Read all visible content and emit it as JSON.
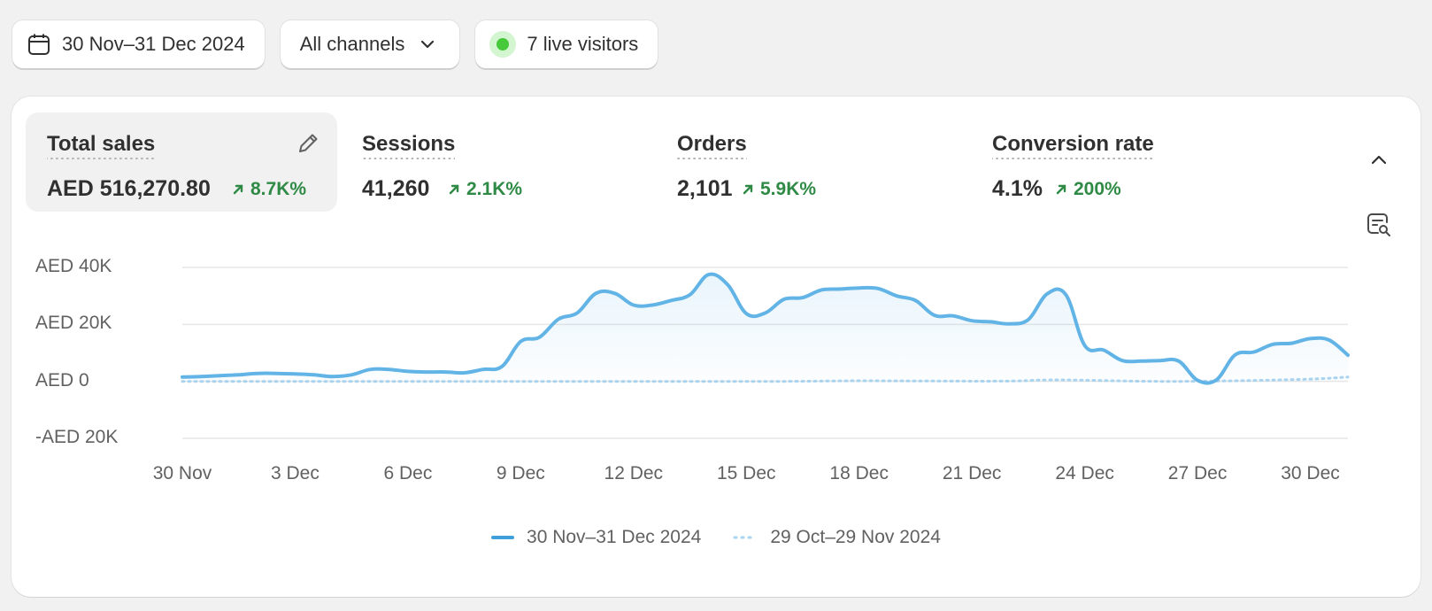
{
  "toolbar": {
    "date_range": "30 Nov–31 Dec 2024",
    "channel": "All channels",
    "live_visitors": "7 live visitors"
  },
  "metrics": [
    {
      "label": "Total sales",
      "value": "AED 516,270.80",
      "delta": "8.7K%"
    },
    {
      "label": "Sessions",
      "value": "41,260",
      "delta": "2.1K%"
    },
    {
      "label": "Orders",
      "value": "2,101",
      "delta": "5.9K%"
    },
    {
      "label": "Conversion rate",
      "value": "4.1%",
      "delta": "200%"
    }
  ],
  "colors": {
    "current": "#62b4e6",
    "previous": "#a9d3ef",
    "positive": "#2e8a45"
  },
  "icons": [
    "calendar-icon",
    "chevron-down-icon",
    "live-dot-icon",
    "pencil-icon",
    "chevron-up-icon",
    "chat-search-icon",
    "arrow-up-right-icon"
  ],
  "chart_data": {
    "type": "line",
    "ylim": [
      -20000,
      40000
    ],
    "y_ticks": [
      {
        "value": 40000,
        "label": "AED 40K"
      },
      {
        "value": 20000,
        "label": "AED 20K"
      },
      {
        "value": 0,
        "label": "AED 0"
      },
      {
        "value": -20000,
        "label": "-AED 20K"
      }
    ],
    "x_ticks": [
      {
        "day": 0,
        "label": "30 Nov"
      },
      {
        "day": 3,
        "label": "3 Dec"
      },
      {
        "day": 6,
        "label": "6 Dec"
      },
      {
        "day": 9,
        "label": "9 Dec"
      },
      {
        "day": 12,
        "label": "12 Dec"
      },
      {
        "day": 15,
        "label": "15 Dec"
      },
      {
        "day": 18,
        "label": "18 Dec"
      },
      {
        "day": 21,
        "label": "21 Dec"
      },
      {
        "day": 24,
        "label": "24 Dec"
      },
      {
        "day": 27,
        "label": "27 Dec"
      },
      {
        "day": 30,
        "label": "30 Dec"
      }
    ],
    "grid": true,
    "series": [
      {
        "name": "30 Nov–31 Dec 2024",
        "style": "solid",
        "x": [
          0,
          0.5,
          1,
          1.5,
          2,
          2.5,
          3,
          3.5,
          4,
          4.5,
          5,
          5.5,
          6,
          6.5,
          7,
          7.5,
          8,
          8.5,
          9,
          9.5,
          10,
          10.5,
          11,
          11.5,
          12,
          12.5,
          13,
          13.5,
          14,
          14.5,
          15,
          15.5,
          16,
          16.5,
          17,
          17.5,
          18,
          18.5,
          19,
          19.5,
          20,
          20.5,
          21,
          21.5,
          22,
          22.5,
          23,
          23.5,
          24,
          24.5,
          25,
          25.5,
          26,
          26.5,
          27,
          27.5,
          28,
          28.5,
          29,
          29.5,
          30,
          30.5,
          31
        ],
        "values": [
          1500,
          1700,
          2000,
          2300,
          2800,
          2800,
          2600,
          2300,
          1700,
          2300,
          4200,
          4200,
          3500,
          3300,
          3300,
          3000,
          4200,
          5200,
          14000,
          15500,
          21800,
          24000,
          30900,
          30900,
          26800,
          26800,
          28400,
          30400,
          37500,
          34000,
          23800,
          24000,
          28800,
          29400,
          32100,
          32400,
          32800,
          32600,
          30000,
          28400,
          23200,
          23000,
          21300,
          20900,
          20200,
          21700,
          30700,
          30400,
          12600,
          11000,
          7300,
          7100,
          7300,
          7100,
          400,
          500,
          9300,
          10300,
          13000,
          13400,
          15000,
          14500,
          9200
        ]
      },
      {
        "name": "29 Oct–29 Nov 2024",
        "style": "dotted",
        "x": [
          0,
          2,
          4,
          6,
          8,
          10,
          12,
          14,
          16,
          18,
          20,
          22,
          23,
          24,
          26,
          28,
          30,
          31
        ],
        "values": [
          0,
          0,
          0,
          0,
          0,
          0,
          0,
          0,
          0,
          200,
          100,
          100,
          500,
          400,
          0,
          200,
          800,
          1500
        ]
      }
    ],
    "legend_position": "bottom-center"
  }
}
